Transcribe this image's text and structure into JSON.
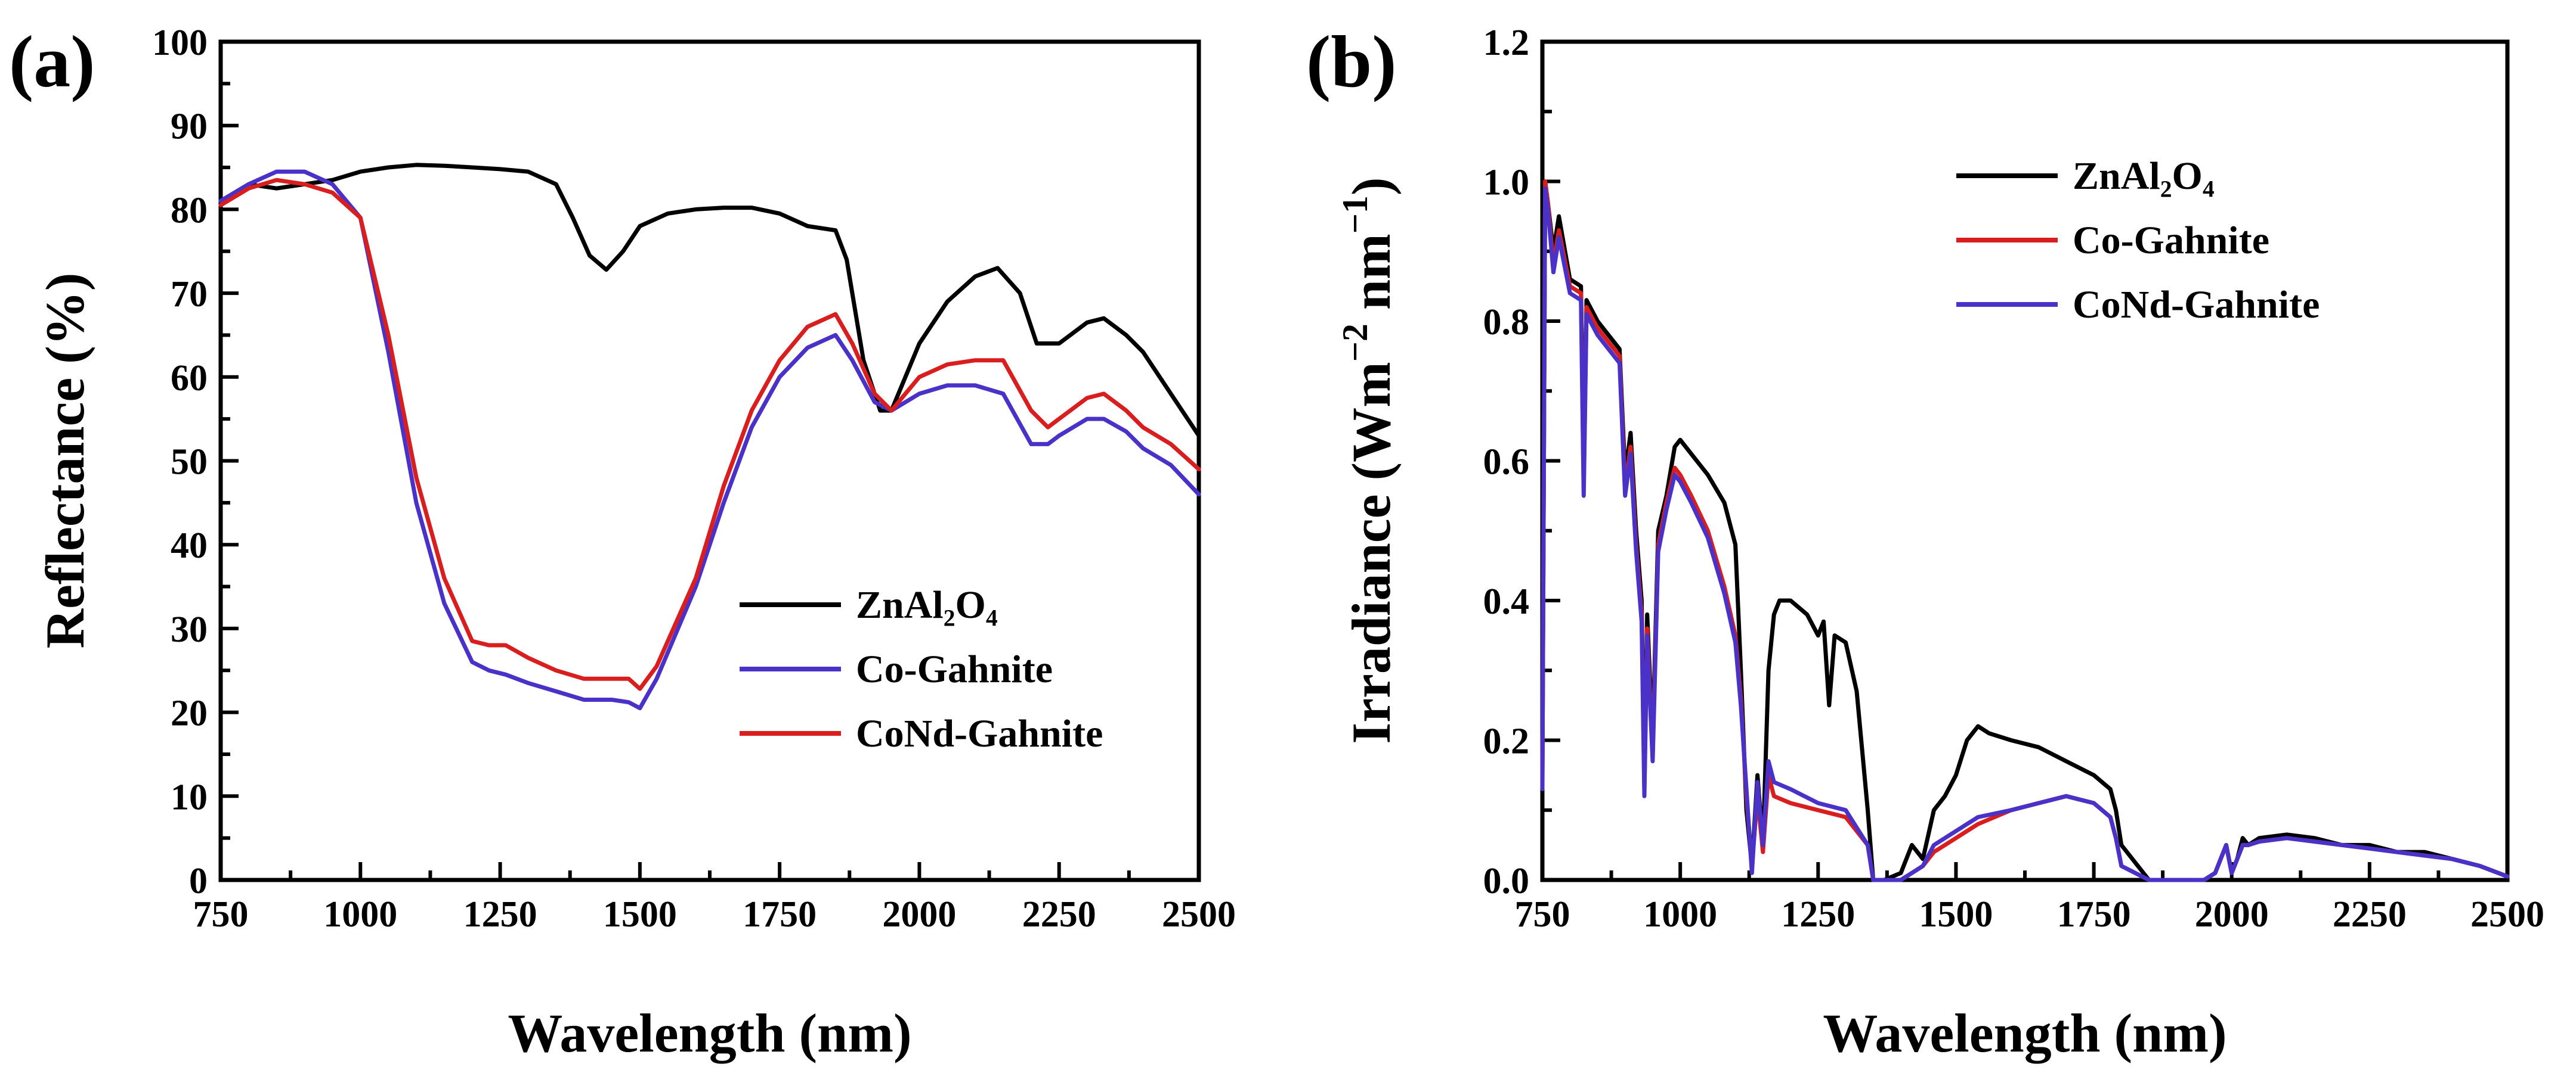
{
  "chart_data": [
    {
      "type": "line",
      "panel_label": "(a)",
      "xlabel": "Wavelength (nm)",
      "ylabel": "Reflectance (%)",
      "xlim": [
        750,
        2500
      ],
      "ylim": [
        0,
        100
      ],
      "xticks": [
        750,
        1000,
        1250,
        1500,
        1750,
        2000,
        2250,
        2500
      ],
      "yticks": [
        0,
        10,
        20,
        30,
        40,
        50,
        60,
        70,
        80,
        90,
        100
      ],
      "legend_position": "center-right",
      "series": [
        {
          "name": "ZnAl₂O₄",
          "color": "#000000",
          "x": [
            750,
            800,
            850,
            900,
            950,
            1000,
            1050,
            1100,
            1150,
            1200,
            1250,
            1300,
            1350,
            1380,
            1410,
            1440,
            1470,
            1500,
            1550,
            1600,
            1650,
            1700,
            1750,
            1800,
            1850,
            1870,
            1900,
            1930,
            1950,
            2000,
            2050,
            2100,
            2140,
            2180,
            2210,
            2250,
            2300,
            2330,
            2370,
            2400,
            2450,
            2500
          ],
          "y": [
            81,
            83,
            82.5,
            83,
            83.5,
            84.5,
            85,
            85.3,
            85.2,
            85,
            84.8,
            84.5,
            83,
            79,
            74.5,
            72.8,
            75,
            78,
            79.5,
            80,
            80.2,
            80.2,
            79.5,
            78,
            77.5,
            74,
            62,
            56,
            56,
            64,
            69,
            72,
            73,
            70,
            64,
            64,
            66.5,
            67,
            65,
            63,
            58,
            53
          ]
        },
        {
          "name": "Co-Gahnite",
          "color": "#4a32c8",
          "x": [
            750,
            800,
            850,
            900,
            950,
            1000,
            1050,
            1100,
            1150,
            1200,
            1230,
            1260,
            1300,
            1350,
            1400,
            1450,
            1480,
            1500,
            1530,
            1600,
            1650,
            1700,
            1750,
            1800,
            1850,
            1880,
            1920,
            1950,
            2000,
            2050,
            2100,
            2150,
            2200,
            2230,
            2250,
            2300,
            2330,
            2370,
            2400,
            2450,
            2500
          ],
          "y": [
            81,
            83,
            84.5,
            84.5,
            83,
            79,
            63,
            45,
            33,
            26,
            25,
            24.5,
            23.5,
            22.5,
            21.5,
            21.5,
            21.2,
            20.5,
            24,
            35,
            45,
            54,
            60,
            63.5,
            65,
            62,
            57,
            56,
            58,
            59,
            59,
            58,
            52,
            52,
            53,
            55,
            55,
            53.5,
            51.5,
            49.5,
            46
          ]
        },
        {
          "name": "CoNd-Gahnite",
          "color": "#d81e1e",
          "x": [
            750,
            800,
            850,
            900,
            950,
            1000,
            1050,
            1100,
            1150,
            1200,
            1230,
            1260,
            1300,
            1350,
            1400,
            1450,
            1480,
            1500,
            1530,
            1600,
            1650,
            1700,
            1750,
            1800,
            1850,
            1880,
            1920,
            1950,
            2000,
            2050,
            2100,
            2150,
            2200,
            2230,
            2250,
            2300,
            2330,
            2370,
            2400,
            2450,
            2500
          ],
          "y": [
            80.5,
            82.5,
            83.5,
            83,
            82,
            79,
            65,
            48,
            36,
            28.5,
            28,
            28,
            26.5,
            25,
            24,
            24,
            24,
            22.8,
            25.5,
            36,
            47,
            56,
            62,
            66,
            67.5,
            64,
            58,
            56,
            60,
            61.5,
            62,
            62,
            56,
            54,
            55,
            57.5,
            58,
            56,
            54,
            52,
            49
          ]
        }
      ]
    },
    {
      "type": "line",
      "panel_label": "(b)",
      "xlabel": "Wavelength (nm)",
      "ylabel_main": "Irradiance (Wm",
      "ylabel_exp1": "−2",
      "ylabel_mid": " nm",
      "ylabel_exp2": "−1",
      "ylabel_end": ")",
      "xlim": [
        750,
        2500
      ],
      "ylim": [
        0,
        1.2
      ],
      "xticks": [
        750,
        1000,
        1250,
        1500,
        1750,
        2000,
        2250,
        2500
      ],
      "yticks": [
        "0.0",
        "0.2",
        "0.4",
        "0.6",
        "0.8",
        "1.0",
        "1.2"
      ],
      "legend_position": "top-right",
      "series": [
        {
          "name": "ZnAl₂O₄",
          "color": "#000000",
          "x": [
            750,
            755,
            760,
            770,
            780,
            800,
            820,
            825,
            830,
            850,
            870,
            890,
            900,
            910,
            920,
            930,
            935,
            940,
            950,
            960,
            975,
            990,
            1000,
            1020,
            1050,
            1080,
            1100,
            1110,
            1120,
            1130,
            1140,
            1150,
            1160,
            1170,
            1180,
            1200,
            1230,
            1250,
            1260,
            1270,
            1280,
            1300,
            1320,
            1340,
            1350,
            1370,
            1400,
            1420,
            1440,
            1460,
            1480,
            1500,
            1520,
            1540,
            1560,
            1600,
            1650,
            1700,
            1750,
            1780,
            1790,
            1800,
            1850,
            1900,
            1950,
            1970,
            1990,
            2000,
            2010,
            2020,
            2030,
            2050,
            2100,
            2150,
            2200,
            2250,
            2300,
            2350,
            2400,
            2450,
            2500
          ],
          "y": [
            0.15,
            1.0,
            0.97,
            0.9,
            0.95,
            0.86,
            0.85,
            0.58,
            0.83,
            0.8,
            0.78,
            0.76,
            0.58,
            0.64,
            0.5,
            0.4,
            0.14,
            0.38,
            0.2,
            0.5,
            0.55,
            0.62,
            0.63,
            0.61,
            0.58,
            0.54,
            0.48,
            0.3,
            0.1,
            0.02,
            0.15,
            0.05,
            0.3,
            0.38,
            0.4,
            0.4,
            0.38,
            0.35,
            0.37,
            0.25,
            0.35,
            0.34,
            0.27,
            0.1,
            0.0,
            0.0,
            0.01,
            0.05,
            0.03,
            0.1,
            0.12,
            0.15,
            0.2,
            0.22,
            0.21,
            0.2,
            0.19,
            0.17,
            0.15,
            0.13,
            0.1,
            0.05,
            0.0,
            0.0,
            0.0,
            0.01,
            0.05,
            0.01,
            0.03,
            0.06,
            0.05,
            0.06,
            0.065,
            0.06,
            0.05,
            0.05,
            0.04,
            0.04,
            0.03,
            0.02,
            0.005
          ]
        },
        {
          "name": "Co-Gahnite",
          "color": "#d81e1e",
          "x": [
            750,
            755,
            760,
            770,
            780,
            800,
            820,
            825,
            830,
            850,
            870,
            890,
            900,
            910,
            920,
            930,
            935,
            940,
            950,
            960,
            975,
            990,
            1000,
            1020,
            1050,
            1080,
            1100,
            1110,
            1120,
            1130,
            1140,
            1150,
            1160,
            1170,
            1200,
            1250,
            1300,
            1340,
            1350,
            1370,
            1400,
            1420,
            1440,
            1460,
            1480,
            1500,
            1520,
            1540,
            1600,
            1650,
            1700,
            1750,
            1780,
            1790,
            1800,
            1850,
            1900,
            1950,
            1970,
            1990,
            2000,
            2010,
            2020,
            2030,
            2050,
            2100,
            2150,
            2200,
            2250,
            2300,
            2350,
            2400,
            2450,
            2500
          ],
          "y": [
            0.14,
            1.0,
            0.97,
            0.88,
            0.93,
            0.85,
            0.84,
            0.56,
            0.82,
            0.79,
            0.77,
            0.75,
            0.56,
            0.62,
            0.48,
            0.38,
            0.13,
            0.36,
            0.18,
            0.48,
            0.54,
            0.59,
            0.58,
            0.55,
            0.5,
            0.42,
            0.35,
            0.26,
            0.12,
            0.02,
            0.12,
            0.04,
            0.15,
            0.12,
            0.11,
            0.1,
            0.09,
            0.05,
            0.0,
            0.0,
            0.0,
            0.01,
            0.02,
            0.04,
            0.05,
            0.06,
            0.07,
            0.08,
            0.1,
            0.11,
            0.12,
            0.11,
            0.09,
            0.06,
            0.02,
            0.0,
            0.0,
            0.0,
            0.01,
            0.05,
            0.01,
            0.03,
            0.05,
            0.05,
            0.055,
            0.06,
            0.055,
            0.05,
            0.045,
            0.04,
            0.035,
            0.03,
            0.02,
            0.005
          ]
        },
        {
          "name": "CoNd-Gahnite",
          "color": "#4a32c8",
          "x": [
            750,
            755,
            760,
            770,
            780,
            800,
            820,
            825,
            830,
            850,
            870,
            890,
            900,
            910,
            920,
            930,
            935,
            940,
            950,
            960,
            975,
            990,
            1000,
            1020,
            1050,
            1080,
            1100,
            1110,
            1120,
            1130,
            1140,
            1150,
            1160,
            1170,
            1200,
            1250,
            1300,
            1340,
            1350,
            1370,
            1400,
            1420,
            1440,
            1460,
            1480,
            1500,
            1520,
            1540,
            1600,
            1650,
            1700,
            1750,
            1780,
            1790,
            1800,
            1850,
            1900,
            1950,
            1970,
            1990,
            2000,
            2010,
            2020,
            2030,
            2050,
            2100,
            2150,
            2200,
            2250,
            2300,
            2350,
            2400,
            2450,
            2500
          ],
          "y": [
            0.13,
            0.99,
            0.96,
            0.87,
            0.92,
            0.84,
            0.83,
            0.55,
            0.81,
            0.78,
            0.76,
            0.74,
            0.55,
            0.61,
            0.47,
            0.37,
            0.12,
            0.35,
            0.17,
            0.47,
            0.53,
            0.58,
            0.57,
            0.54,
            0.49,
            0.41,
            0.34,
            0.25,
            0.13,
            0.01,
            0.14,
            0.05,
            0.17,
            0.14,
            0.13,
            0.11,
            0.1,
            0.05,
            0.0,
            0.0,
            0.0,
            0.01,
            0.02,
            0.05,
            0.06,
            0.07,
            0.08,
            0.09,
            0.1,
            0.11,
            0.12,
            0.11,
            0.09,
            0.06,
            0.02,
            0.0,
            0.0,
            0.0,
            0.01,
            0.05,
            0.01,
            0.03,
            0.05,
            0.05,
            0.055,
            0.06,
            0.055,
            0.05,
            0.045,
            0.04,
            0.035,
            0.03,
            0.02,
            0.005
          ]
        }
      ]
    }
  ]
}
